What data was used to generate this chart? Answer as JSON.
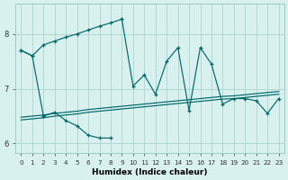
{
  "xlabel": "Humidex (Indice chaleur)",
  "x_values": [
    0,
    1,
    2,
    3,
    4,
    5,
    6,
    7,
    8,
    9,
    10,
    11,
    12,
    13,
    14,
    15,
    16,
    17,
    18,
    19,
    20,
    21,
    22,
    23
  ],
  "series_arc": [
    7.7,
    7.6,
    7.8,
    7.87,
    7.94,
    8.0,
    8.07,
    8.14,
    8.2,
    8.27,
    null,
    null,
    null,
    null,
    null,
    null,
    null,
    null,
    null,
    null,
    null,
    null,
    null,
    null
  ],
  "series_osc": [
    null,
    null,
    null,
    null,
    null,
    null,
    null,
    null,
    null,
    8.27,
    7.05,
    7.25,
    6.9,
    7.5,
    7.75,
    6.6,
    7.75,
    7.45,
    6.72,
    6.82,
    6.82,
    6.78,
    6.55,
    6.82
  ],
  "series_low": [
    null,
    null,
    6.5,
    6.57,
    6.42,
    6.32,
    6.15,
    6.1,
    6.1,
    null,
    null,
    null,
    null,
    null,
    null,
    null,
    null,
    null,
    null,
    null,
    null,
    null,
    null,
    null
  ],
  "series_start": [
    7.7,
    7.6,
    6.5,
    null,
    null,
    null,
    null,
    null,
    null,
    null,
    null,
    null,
    null,
    null,
    null,
    null,
    null,
    null,
    null,
    null,
    null,
    null,
    null,
    null
  ],
  "trend1": [
    6.48,
    6.5,
    6.52,
    6.55,
    6.57,
    6.59,
    6.62,
    6.64,
    6.66,
    6.68,
    6.7,
    6.72,
    6.74,
    6.76,
    6.78,
    6.8,
    6.82,
    6.84,
    6.86,
    6.87,
    6.89,
    6.91,
    6.93,
    6.95
  ],
  "trend2": [
    6.43,
    6.45,
    6.47,
    6.5,
    6.52,
    6.54,
    6.57,
    6.59,
    6.61,
    6.63,
    6.65,
    6.67,
    6.69,
    6.71,
    6.73,
    6.75,
    6.77,
    6.79,
    6.81,
    6.82,
    6.84,
    6.86,
    6.88,
    6.9
  ],
  "bg_color": "#d8f0ee",
  "grid_color": "#b0d8d4",
  "line_color": "#006868",
  "ylim": [
    5.82,
    8.55
  ],
  "xlim": [
    -0.5,
    23.5
  ],
  "yticks": [
    6,
    7,
    8
  ],
  "xticks": [
    0,
    1,
    2,
    3,
    4,
    5,
    6,
    7,
    8,
    9,
    10,
    11,
    12,
    13,
    14,
    15,
    16,
    17,
    18,
    19,
    20,
    21,
    22,
    23
  ]
}
